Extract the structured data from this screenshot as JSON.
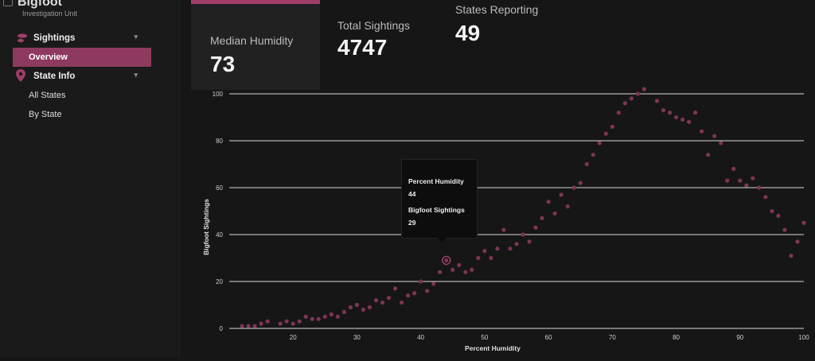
{
  "app": {
    "title": "Bigfoot",
    "subtitle": "Investigation Unit"
  },
  "sidebar": {
    "groups": [
      {
        "label": "Sightings",
        "icon": "footprint-icon",
        "items": [
          {
            "label": "Overview",
            "active": true
          }
        ]
      },
      {
        "label": "State Info",
        "icon": "map-pin-icon",
        "items": [
          {
            "label": "All States",
            "active": false
          },
          {
            "label": "By State",
            "active": false
          }
        ]
      }
    ]
  },
  "kpis": [
    {
      "label": "Median Humidity",
      "value": "73",
      "active": true
    },
    {
      "label": "Total Sightings",
      "value": "4747",
      "active": false
    },
    {
      "label": "States Reporting",
      "value": "49",
      "active": false
    }
  ],
  "tooltip": {
    "x_label": "Percent Humidity",
    "x_value": "44",
    "y_label": "Bigfoot Sightings",
    "y_value": "29"
  },
  "colors": {
    "accent": "#a13d69",
    "point": "#7d3556"
  },
  "chart_data": {
    "type": "scatter",
    "xlabel": "Percent Humidity",
    "ylabel": "Bigfoot Sightings",
    "xlim": [
      10,
      100
    ],
    "ylim": [
      0,
      100
    ],
    "x_ticks": [
      "20",
      "30",
      "40",
      "50",
      "60",
      "70",
      "80",
      "90",
      "100"
    ],
    "y_ticks": [
      "0",
      "20",
      "40",
      "60",
      "80",
      "100"
    ],
    "highlight": {
      "x": 44,
      "y": 29
    },
    "points": [
      [
        12,
        1
      ],
      [
        13,
        1
      ],
      [
        14,
        1
      ],
      [
        15,
        2
      ],
      [
        16,
        3
      ],
      [
        18,
        2
      ],
      [
        19,
        3
      ],
      [
        20,
        2
      ],
      [
        21,
        3
      ],
      [
        22,
        5
      ],
      [
        23,
        4
      ],
      [
        24,
        4
      ],
      [
        25,
        5
      ],
      [
        26,
        6
      ],
      [
        27,
        5
      ],
      [
        28,
        7
      ],
      [
        29,
        9
      ],
      [
        30,
        10
      ],
      [
        31,
        8
      ],
      [
        32,
        9
      ],
      [
        33,
        12
      ],
      [
        34,
        11
      ],
      [
        35,
        13
      ],
      [
        36,
        17
      ],
      [
        37,
        11
      ],
      [
        38,
        14
      ],
      [
        39,
        15
      ],
      [
        40,
        20
      ],
      [
        41,
        16
      ],
      [
        42,
        19
      ],
      [
        43,
        24
      ],
      [
        44,
        29
      ],
      [
        45,
        25
      ],
      [
        46,
        27
      ],
      [
        47,
        24
      ],
      [
        48,
        25
      ],
      [
        49,
        30
      ],
      [
        50,
        33
      ],
      [
        51,
        30
      ],
      [
        52,
        34
      ],
      [
        53,
        42
      ],
      [
        54,
        34
      ],
      [
        55,
        36
      ],
      [
        56,
        40
      ],
      [
        57,
        37
      ],
      [
        58,
        43
      ],
      [
        59,
        47
      ],
      [
        60,
        54
      ],
      [
        61,
        49
      ],
      [
        62,
        57
      ],
      [
        63,
        52
      ],
      [
        64,
        60
      ],
      [
        65,
        62
      ],
      [
        66,
        70
      ],
      [
        67,
        74
      ],
      [
        68,
        79
      ],
      [
        69,
        83
      ],
      [
        70,
        86
      ],
      [
        71,
        92
      ],
      [
        72,
        96
      ],
      [
        73,
        98
      ],
      [
        74,
        100
      ],
      [
        75,
        102
      ],
      [
        76,
        105
      ],
      [
        77,
        97
      ],
      [
        78,
        93
      ],
      [
        79,
        92
      ],
      [
        80,
        90
      ],
      [
        81,
        89
      ],
      [
        82,
        88
      ],
      [
        83,
        92
      ],
      [
        84,
        84
      ],
      [
        85,
        74
      ],
      [
        86,
        82
      ],
      [
        87,
        79
      ],
      [
        88,
        63
      ],
      [
        89,
        68
      ],
      [
        90,
        63
      ],
      [
        91,
        61
      ],
      [
        92,
        64
      ],
      [
        93,
        60
      ],
      [
        94,
        56
      ],
      [
        95,
        50
      ],
      [
        96,
        48
      ],
      [
        97,
        42
      ],
      [
        98,
        31
      ],
      [
        99,
        37
      ],
      [
        100,
        45
      ]
    ]
  }
}
